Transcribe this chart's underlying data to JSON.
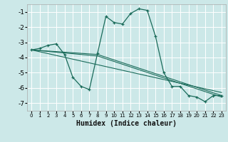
{
  "xlabel": "Humidex (Indice chaleur)",
  "bg_color": "#cce8e8",
  "grid_color": "#ffffff",
  "line_color": "#1a6b5a",
  "xlim": [
    -0.5,
    23.5
  ],
  "ylim": [
    -7.5,
    -0.5
  ],
  "xticks": [
    0,
    1,
    2,
    3,
    4,
    5,
    6,
    7,
    8,
    9,
    10,
    11,
    12,
    13,
    14,
    15,
    16,
    17,
    18,
    19,
    20,
    21,
    22,
    23
  ],
  "yticks": [
    -7,
    -6,
    -5,
    -4,
    -3,
    -2,
    -1
  ],
  "series1_x": [
    0,
    1,
    2,
    3,
    4,
    5,
    6,
    7,
    8,
    9,
    10,
    11,
    12,
    13,
    14,
    15,
    16,
    17,
    18,
    19,
    20,
    21,
    22,
    23
  ],
  "series1_y": [
    -3.5,
    -3.4,
    -3.2,
    -3.1,
    -3.8,
    -5.3,
    -5.9,
    -6.1,
    -3.7,
    -1.3,
    -1.7,
    -1.8,
    -1.1,
    -0.8,
    -0.9,
    -2.6,
    -5.0,
    -5.9,
    -5.9,
    -6.5,
    -6.6,
    -6.9,
    -6.5,
    -6.5
  ],
  "reg_lines": [
    {
      "x": [
        0,
        23
      ],
      "y": [
        -3.5,
        -6.3
      ]
    },
    {
      "x": [
        0,
        8,
        23
      ],
      "y": [
        -3.5,
        -3.8,
        -6.5
      ]
    },
    {
      "x": [
        0,
        8,
        23
      ],
      "y": [
        -3.5,
        -3.9,
        -6.6
      ]
    }
  ]
}
